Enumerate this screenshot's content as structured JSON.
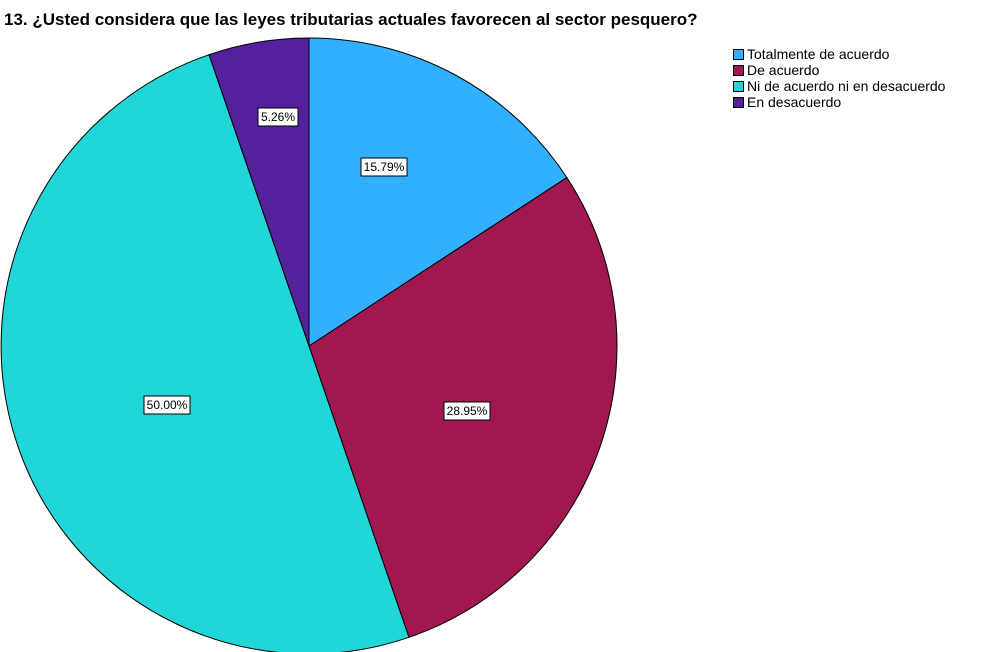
{
  "chart_data": {
    "type": "pie",
    "title": "13. ¿Usted considera que las leyes tributarias actuales favorecen al sector pesquero?",
    "legend_position": "top-right",
    "start_angle_deg": 0,
    "direction": "clockwise",
    "slices": [
      {
        "name": "Totalmente de acuerdo",
        "value": 15.79,
        "label": "15.79%",
        "color": "#33AFFF"
      },
      {
        "name": "De acuerdo",
        "value": 28.95,
        "label": "28.95%",
        "color": "#A0184F"
      },
      {
        "name": "Ni de acuerdo ni en desacuerdo",
        "value": 50.0,
        "label": "50.00%",
        "color": "#21D6D6"
      },
      {
        "name": "En desacuerdo",
        "value": 5.26,
        "label": "5.26%",
        "color": "#55209B"
      }
    ]
  }
}
